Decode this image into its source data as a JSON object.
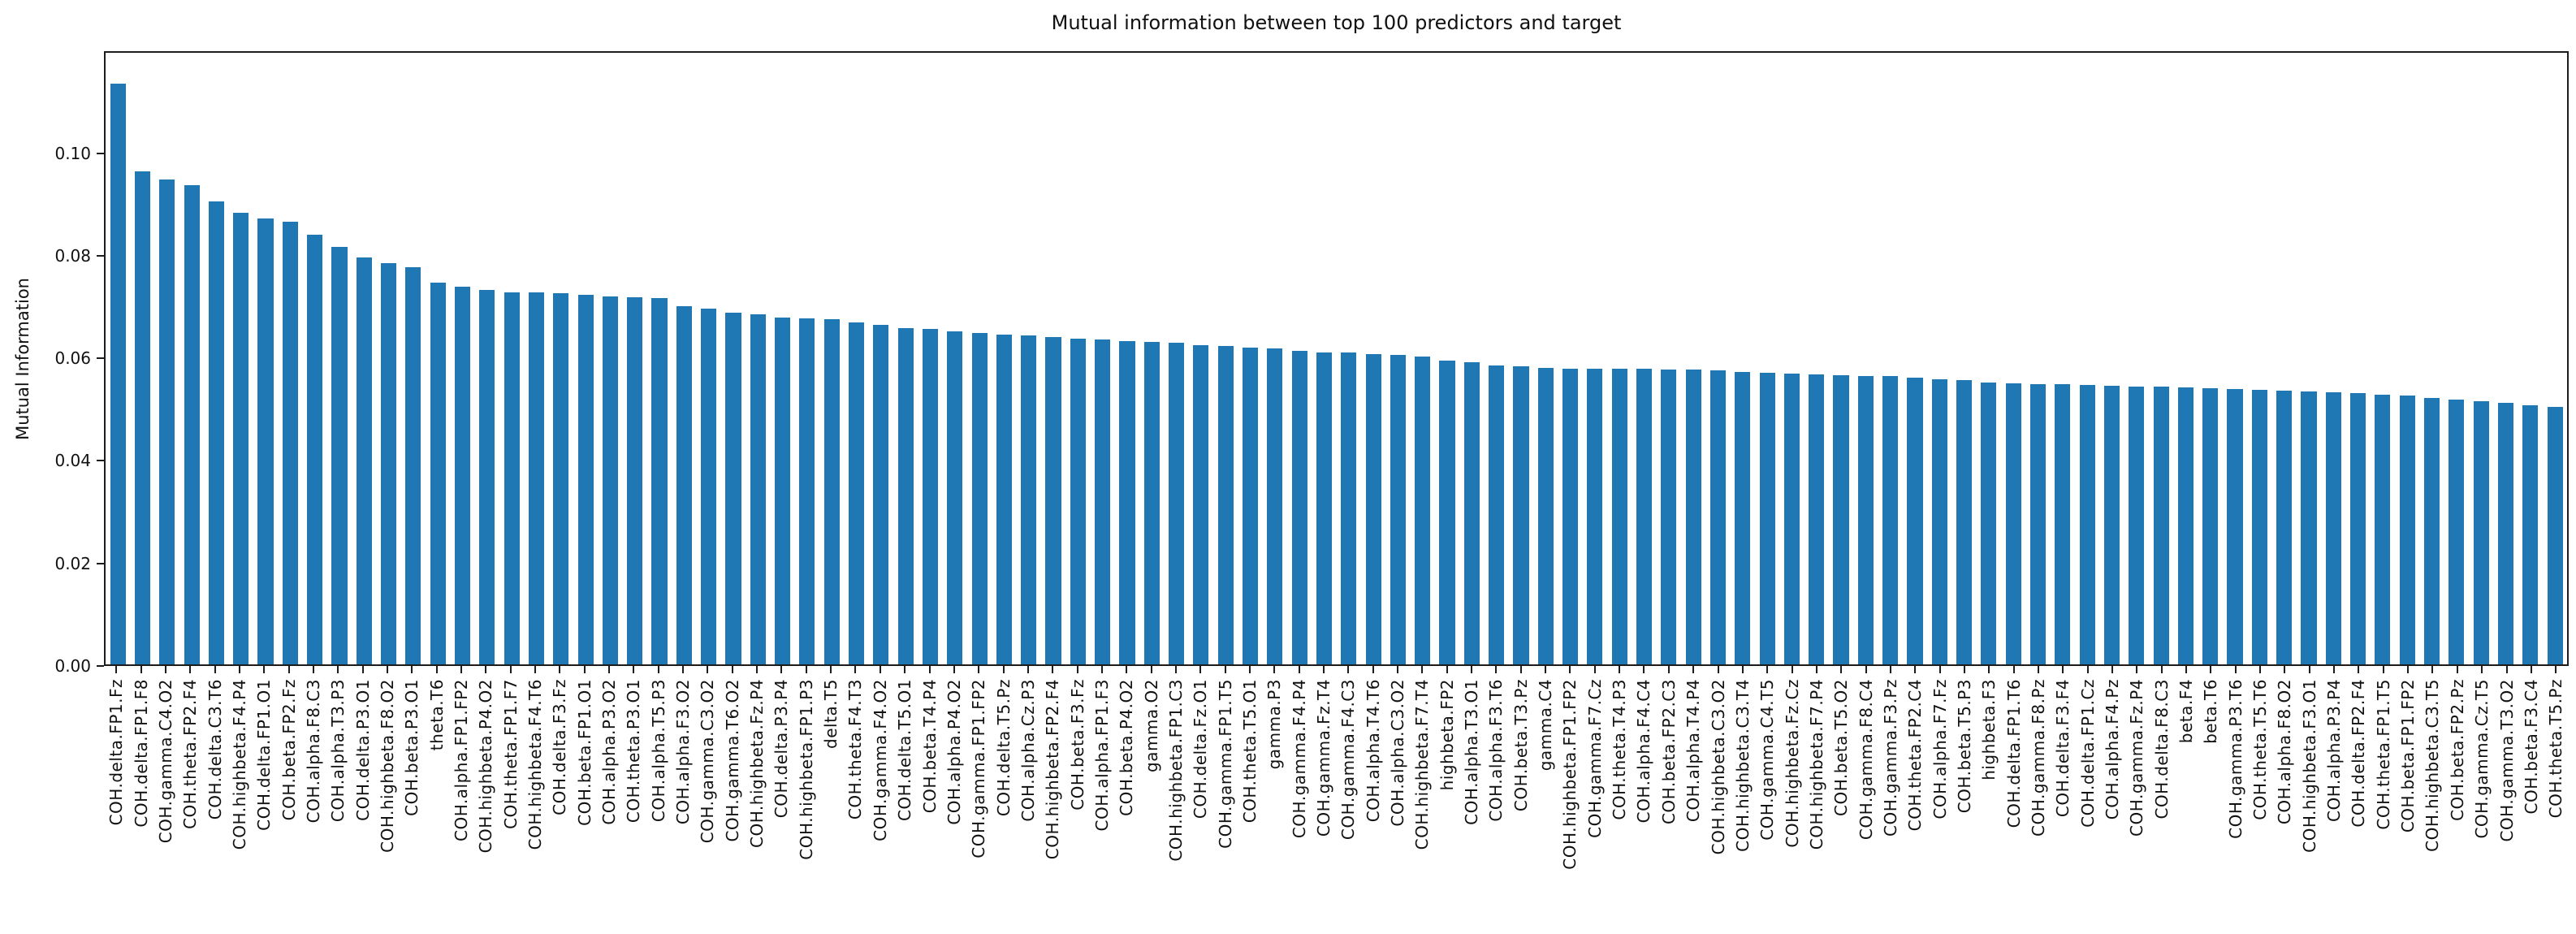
{
  "figure": {
    "title": "Mutual information between top 100 predictors and target",
    "y_axis_label": "Mutual Information"
  },
  "chart_data": {
    "type": "bar",
    "title": "Mutual information between top 100 predictors and target",
    "xlabel": "",
    "ylabel": "Mutual Information",
    "ylim": [
      0,
      0.1199
    ],
    "grid": false,
    "legend": null,
    "bar_color": "#1f77b4",
    "yticks": [
      0.0,
      0.02,
      0.04,
      0.06,
      0.08,
      0.1
    ],
    "ytick_labels": [
      "0.00",
      "0.02",
      "0.04",
      "0.06",
      "0.08",
      "0.10"
    ],
    "categories": [
      "COH.delta.FP1.Fz",
      "COH.delta.FP1.F8",
      "COH.gamma.C4.O2",
      "COH.theta.FP2.F4",
      "COH.delta.C3.T6",
      "COH.highbeta.F4.P4",
      "COH.delta.FP1.O1",
      "COH.beta.FP2.Fz",
      "COH.alpha.F8.C3",
      "COH.alpha.T3.P3",
      "COH.delta.P3.O1",
      "COH.highbeta.F8.O2",
      "COH.beta.P3.O1",
      "theta.T6",
      "COH.alpha.FP1.FP2",
      "COH.highbeta.P4.O2",
      "COH.theta.FP1.F7",
      "COH.highbeta.F4.T6",
      "COH.delta.F3.Fz",
      "COH.beta.FP1.O1",
      "COH.alpha.P3.O2",
      "COH.theta.P3.O1",
      "COH.alpha.T5.P3",
      "COH.alpha.F3.O2",
      "COH.gamma.C3.O2",
      "COH.gamma.T6.O2",
      "COH.highbeta.Fz.P4",
      "COH.delta.P3.P4",
      "COH.highbeta.FP1.P3",
      "delta.T5",
      "COH.theta.F4.T3",
      "COH.gamma.F4.O2",
      "COH.delta.T5.O1",
      "COH.beta.T4.P4",
      "COH.alpha.P4.O2",
      "COH.gamma.FP1.FP2",
      "COH.delta.T5.Pz",
      "COH.alpha.Cz.P3",
      "COH.highbeta.FP2.F4",
      "COH.beta.F3.Fz",
      "COH.alpha.FP1.F3",
      "COH.beta.P4.O2",
      "gamma.O2",
      "COH.highbeta.FP1.C3",
      "COH.delta.Fz.O1",
      "COH.gamma.FP1.T5",
      "COH.theta.T5.O1",
      "gamma.P3",
      "COH.gamma.F4.P4",
      "COH.gamma.Fz.T4",
      "COH.gamma.F4.C3",
      "COH.alpha.T4.T6",
      "COH.alpha.C3.O2",
      "COH.highbeta.F7.T4",
      "highbeta.FP2",
      "COH.alpha.T3.O1",
      "COH.alpha.F3.T6",
      "COH.beta.T3.Pz",
      "gamma.C4",
      "COH.highbeta.FP1.FP2",
      "COH.gamma.F7.Cz",
      "COH.theta.T4.P3",
      "COH.alpha.F4.C4",
      "COH.beta.FP2.C3",
      "COH.alpha.T4.P4",
      "COH.highbeta.C3.O2",
      "COH.highbeta.C3.T4",
      "COH.gamma.C4.T5",
      "COH.highbeta.Fz.Cz",
      "COH.highbeta.F7.P4",
      "COH.beta.T5.O2",
      "COH.gamma.F8.C4",
      "COH.gamma.F3.Pz",
      "COH.theta.FP2.C4",
      "COH.alpha.F7.Fz",
      "COH.beta.T5.P3",
      "highbeta.F3",
      "COH.delta.FP1.T6",
      "COH.gamma.F8.Pz",
      "COH.delta.F3.F4",
      "COH.delta.FP1.Cz",
      "COH.alpha.F4.Pz",
      "COH.gamma.Fz.P4",
      "COH.delta.F8.C3",
      "beta.F4",
      "beta.T6",
      "COH.gamma.P3.T6",
      "COH.theta.T5.T6",
      "COH.alpha.F8.O2",
      "COH.highbeta.F3.O1",
      "COH.alpha.P3.P4",
      "COH.delta.FP2.F4",
      "COH.theta.FP1.T5",
      "COH.beta.FP1.FP2",
      "COH.highbeta.C3.T5",
      "COH.beta.FP2.Pz",
      "COH.gamma.Cz.T5",
      "COH.gamma.T3.O2",
      "COH.beta.F3.C4",
      "COH.theta.T5.Pz"
    ],
    "values": [
      0.1138,
      0.0967,
      0.0951,
      0.0939,
      0.0907,
      0.0885,
      0.0874,
      0.0868,
      0.0843,
      0.0818,
      0.0798,
      0.0787,
      0.0779,
      0.0749,
      0.074,
      0.0734,
      0.073,
      0.0729,
      0.0727,
      0.0724,
      0.0722,
      0.072,
      0.0718,
      0.0703,
      0.0697,
      0.069,
      0.0687,
      0.068,
      0.0678,
      0.0676,
      0.067,
      0.0665,
      0.066,
      0.0657,
      0.0653,
      0.065,
      0.0647,
      0.0645,
      0.0641,
      0.0639,
      0.0637,
      0.0634,
      0.0632,
      0.063,
      0.0626,
      0.0624,
      0.0621,
      0.0619,
      0.0615,
      0.0612,
      0.0611,
      0.0609,
      0.0606,
      0.0603,
      0.0596,
      0.0593,
      0.0586,
      0.0585,
      0.0581,
      0.058,
      0.058,
      0.0579,
      0.0579,
      0.0578,
      0.0578,
      0.0577,
      0.0573,
      0.0571,
      0.057,
      0.0569,
      0.0567,
      0.0566,
      0.0565,
      0.0562,
      0.0559,
      0.0557,
      0.0553,
      0.0551,
      0.055,
      0.0549,
      0.0547,
      0.0546,
      0.0545,
      0.0545,
      0.0543,
      0.0541,
      0.054,
      0.0538,
      0.0536,
      0.0535,
      0.0533,
      0.0532,
      0.0529,
      0.0527,
      0.0522,
      0.0519,
      0.0516,
      0.0513,
      0.0508,
      0.0505
    ]
  }
}
